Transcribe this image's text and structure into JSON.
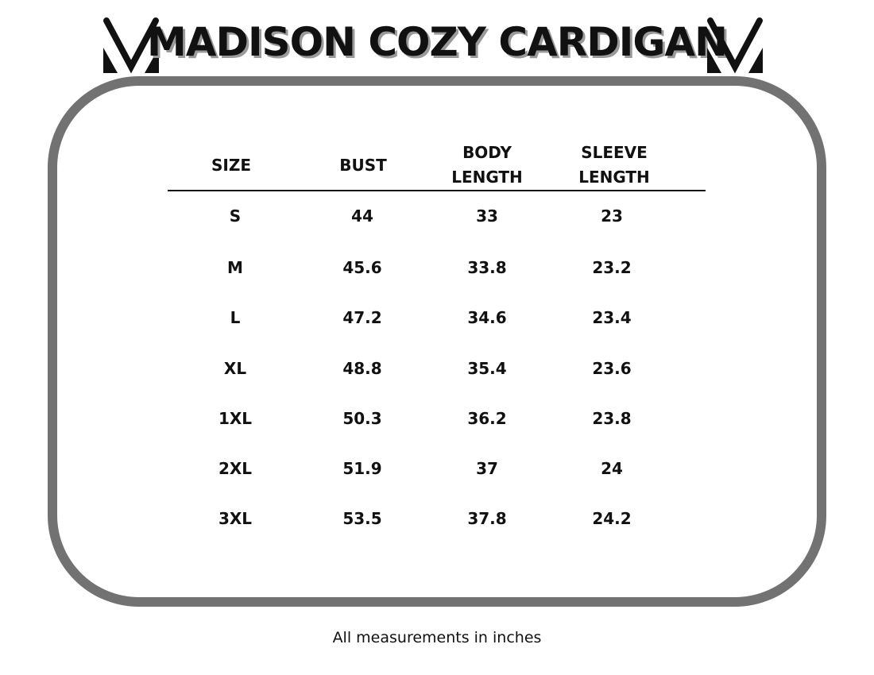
{
  "title": "MADISON COZY CARDIGAN",
  "brand_logo": "V",
  "border_color": "#727272",
  "table": {
    "headers": [
      "SIZE",
      "BUST",
      "BODY\nLENGTH",
      "SLEEVE\nLENGTH"
    ],
    "header_lines": [
      [
        "SIZE"
      ],
      [
        "BUST"
      ],
      [
        "BODY",
        "LENGTH"
      ],
      [
        "SLEEVE",
        "LENGTH"
      ]
    ],
    "rows": [
      [
        "S",
        "44",
        "33",
        "23"
      ],
      [
        "M",
        "45.6",
        "33.8",
        "23.2"
      ],
      [
        "L",
        "47.2",
        "34.6",
        "23.4"
      ],
      [
        "XL",
        "48.8",
        "35.4",
        "23.6"
      ],
      [
        "1XL",
        "50.3",
        "36.2",
        "23.8"
      ],
      [
        "2XL",
        "51.9",
        "37",
        "24"
      ],
      [
        "3XL",
        "53.5",
        "37.8",
        "24.2"
      ]
    ]
  },
  "footer": "All measurements in inches"
}
